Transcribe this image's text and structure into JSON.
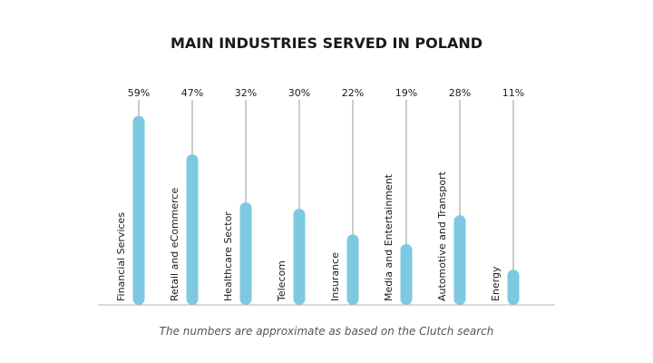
{
  "chart_data": {
    "type": "bar",
    "title": "MAIN INDUSTRIES SERVED IN POLAND",
    "categories": [
      "Financial Services",
      "Retail and eCommerce",
      "Healthcare Sector",
      "Telecom",
      "Insurance",
      "Media and Entertainment",
      "Automotive and Transport",
      "Energy"
    ],
    "values": [
      59,
      47,
      32,
      30,
      22,
      19,
      28,
      11
    ],
    "value_labels": [
      "59%",
      "47%",
      "32%",
      "30%",
      "22%",
      "19%",
      "28%",
      "11%"
    ],
    "ylim": [
      0,
      62
    ],
    "grid": false,
    "legend": "none",
    "note": "The numbers are approximate as based on the Clutch search",
    "colors": {
      "bar": "#7ec9e2",
      "guide": "#9a9a9a",
      "baseline": "#b5b5b5",
      "text": "#1a1a1a",
      "note": "#555555"
    }
  }
}
